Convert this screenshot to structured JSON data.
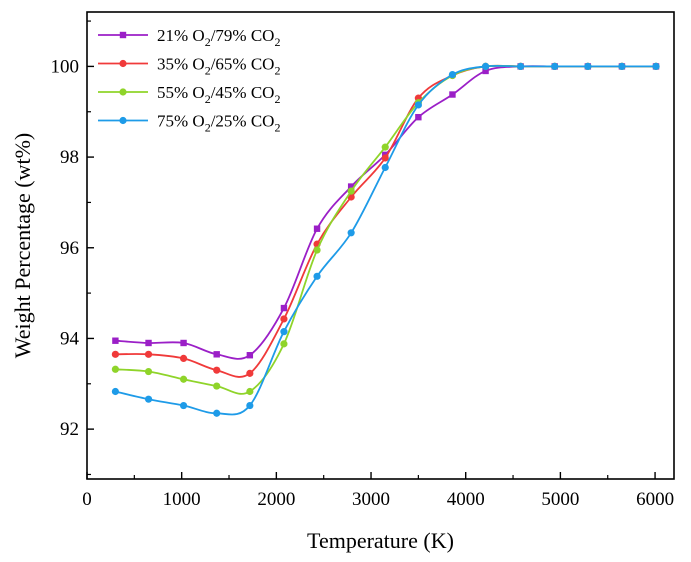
{
  "chart_data": {
    "type": "line",
    "xlabel": "Temperature  (K)",
    "ylabel": "Weight Percentage (wt%)",
    "xlim": [
      0,
      6200
    ],
    "ylim": [
      90.9,
      101.2
    ],
    "xticks": [
      0,
      1000,
      2000,
      3000,
      4000,
      5000,
      6000
    ],
    "yticks": [
      92,
      94,
      96,
      98,
      100
    ],
    "xtick_labels": [
      "0",
      "1000",
      "2000",
      "3000",
      "4000",
      "5000",
      "6000"
    ],
    "ytick_labels": [
      "92",
      "94",
      "96",
      "98",
      "100"
    ],
    "legend_position": "top-left",
    "grid": false,
    "x": [
      300,
      650,
      1020,
      1370,
      1720,
      2080,
      2430,
      2790,
      3150,
      3500,
      3860,
      4210,
      4580,
      4940,
      5290,
      5650,
      6010
    ],
    "series": [
      {
        "name_prefix": "21% O",
        "name_sub1": "2",
        "name_mid": "/79% CO",
        "name_sub2": "2",
        "color": "#9b1fc7",
        "marker": "square",
        "values": [
          93.95,
          93.9,
          93.9,
          93.65,
          93.63,
          94.67,
          96.42,
          97.35,
          98.05,
          98.88,
          99.38,
          99.9,
          100.0,
          100.0,
          100.0,
          100.0,
          100.0
        ]
      },
      {
        "name_prefix": "35% O",
        "name_sub1": "2",
        "name_mid": "/65% CO",
        "name_sub2": "2",
        "color": "#f03a3a",
        "marker": "circle",
        "values": [
          93.65,
          93.65,
          93.56,
          93.3,
          93.23,
          94.43,
          96.08,
          97.12,
          97.98,
          99.3,
          99.8,
          100.0,
          100.0,
          100.0,
          100.0,
          100.0,
          100.0
        ]
      },
      {
        "name_prefix": "55% O",
        "name_sub1": "2",
        "name_mid": "/45% CO",
        "name_sub2": "2",
        "color": "#8fd42a",
        "marker": "circle",
        "values": [
          93.32,
          93.27,
          93.1,
          92.95,
          92.83,
          93.88,
          95.95,
          97.25,
          98.22,
          99.2,
          99.8,
          100.0,
          100.0,
          100.0,
          100.0,
          100.0,
          100.0
        ]
      },
      {
        "name_prefix": "75% O",
        "name_sub1": "2",
        "name_mid": "/25% CO",
        "name_sub2": "2",
        "color": "#1e9be8",
        "marker": "circle",
        "values": [
          92.83,
          92.66,
          92.52,
          92.35,
          92.52,
          94.15,
          95.37,
          96.33,
          97.77,
          99.15,
          99.82,
          100.0,
          100.0,
          100.0,
          100.0,
          100.0,
          100.0
        ]
      }
    ]
  }
}
